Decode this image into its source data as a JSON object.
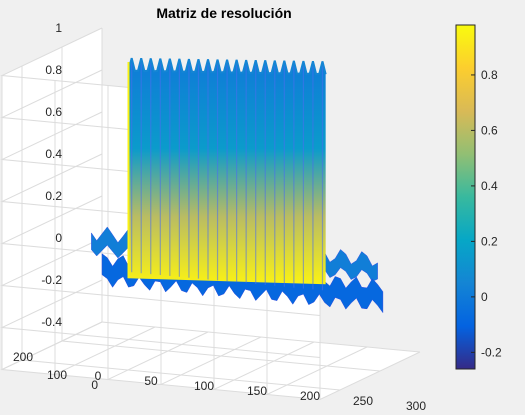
{
  "chart_data": {
    "type": "surface",
    "title": "Matriz de resolución",
    "xlabel": "",
    "ylabel": "",
    "zlabel": "",
    "x_range": [
      0,
      300
    ],
    "x_ticks": [
      "0",
      "50",
      "100",
      "150",
      "200",
      "250",
      "300"
    ],
    "y_range": [
      0,
      250
    ],
    "y_ticks": [
      "0",
      "100",
      "200"
    ],
    "z_range": [
      -0.4,
      1
    ],
    "z_ticks": [
      "-0.4",
      "-0.2",
      "0",
      "0.2",
      "0.4",
      "0.6",
      "0.8",
      "1"
    ],
    "grid": true,
    "colormap": "parula",
    "colorbar": {
      "range": [
        -0.26,
        0.98
      ],
      "ticks": [
        "-0.2",
        "0",
        "0.2",
        "0.4",
        "0.6",
        "0.8"
      ]
    },
    "surface_peaks": {
      "x_positions": [
        28,
        37,
        46,
        55,
        64,
        73,
        82,
        91,
        100,
        109,
        118,
        127,
        136,
        145,
        154,
        163,
        172,
        181,
        190,
        199,
        208
      ],
      "approx_z_max": 0.97,
      "baseline_z": -0.1
    },
    "colors": {
      "background": "#f0f0f0",
      "axes_bg": "#ffffff",
      "grid": "#dcdcdc",
      "axis_line": "#262626",
      "colormap_stops": [
        "#352a87",
        "#0363e1",
        "#1485d4",
        "#06a7c6",
        "#38b99e",
        "#92bf73",
        "#d9ba56",
        "#fcce2e",
        "#f9fb0e"
      ]
    }
  }
}
